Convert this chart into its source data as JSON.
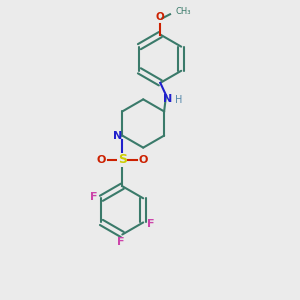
{
  "background_color": "#ebebeb",
  "bond_color": "#3a7a6a",
  "nitrogen_color": "#2020cc",
  "oxygen_color": "#cc2000",
  "sulfur_color": "#cccc00",
  "fluorine_color": "#cc44aa",
  "h_color": "#5588aa",
  "figsize": [
    3.0,
    3.0
  ],
  "dpi": 100,
  "xlim": [
    0,
    10
  ],
  "ylim": [
    0,
    10
  ]
}
